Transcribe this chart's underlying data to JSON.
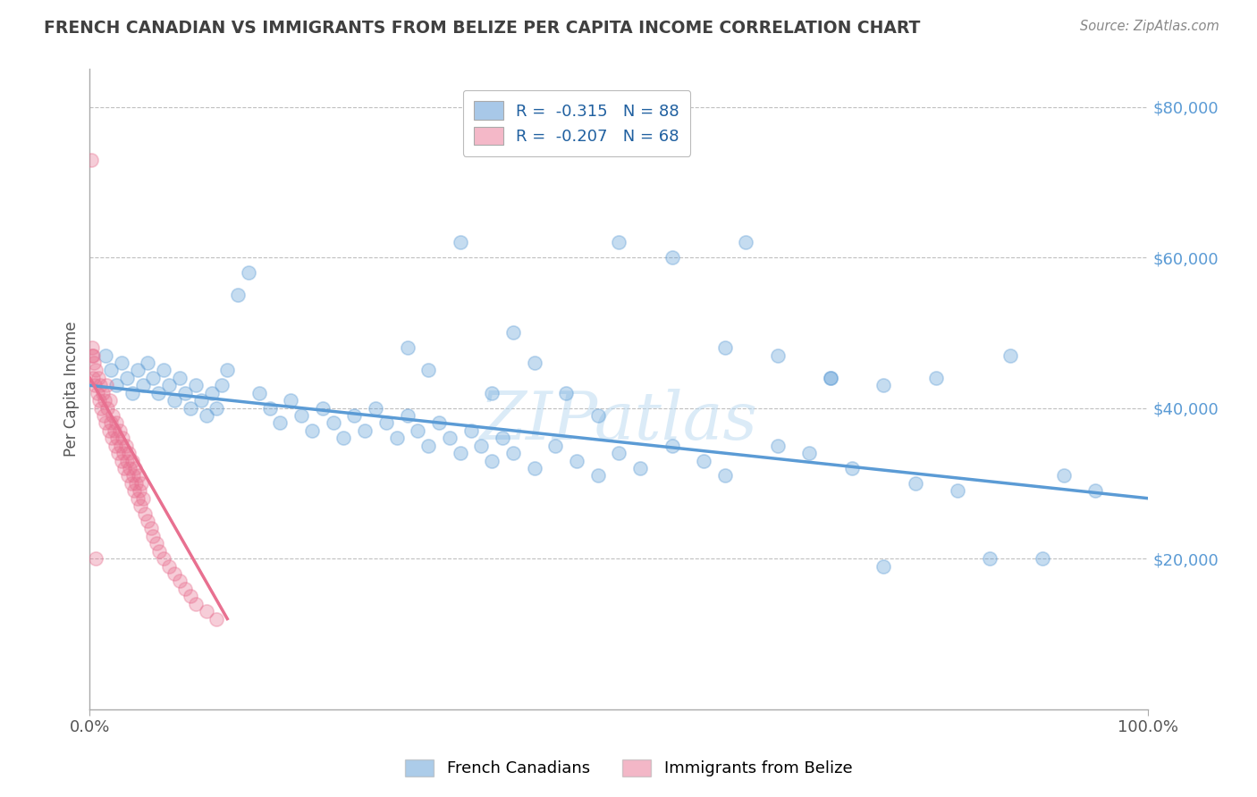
{
  "title": "FRENCH CANADIAN VS IMMIGRANTS FROM BELIZE PER CAPITA INCOME CORRELATION CHART",
  "source_text": "Source: ZipAtlas.com",
  "ylabel": "Per Capita Income",
  "xlim": [
    0,
    100
  ],
  "ylim": [
    0,
    85000
  ],
  "yticks": [
    0,
    20000,
    40000,
    60000,
    80000
  ],
  "ytick_labels": [
    "",
    "$20,000",
    "$40,000",
    "$60,000",
    "$80,000"
  ],
  "xtick_labels": [
    "0.0%",
    "100.0%"
  ],
  "legend_items": [
    {
      "label": "R =  -0.315   N = 88",
      "color": "#a8c8e8"
    },
    {
      "label": "R =  -0.207   N = 68",
      "color": "#f4b8c8"
    }
  ],
  "blue_color": "#5b9bd5",
  "pink_color": "#e87090",
  "watermark": "ZIPatlas",
  "background_color": "#ffffff",
  "grid_color": "#c0c0c0",
  "title_color": "#404040",
  "yaxis_label_color": "#5b9bd5",
  "blue_scatter_x": [
    1.5,
    2.0,
    2.5,
    3.0,
    3.5,
    4.0,
    4.5,
    5.0,
    5.5,
    6.0,
    6.5,
    7.0,
    7.5,
    8.0,
    8.5,
    9.0,
    9.5,
    10.0,
    10.5,
    11.0,
    11.5,
    12.0,
    12.5,
    13.0,
    14.0,
    15.0,
    16.0,
    17.0,
    18.0,
    19.0,
    20.0,
    21.0,
    22.0,
    23.0,
    24.0,
    25.0,
    26.0,
    27.0,
    28.0,
    29.0,
    30.0,
    31.0,
    32.0,
    33.0,
    34.0,
    35.0,
    36.0,
    37.0,
    38.0,
    39.0,
    40.0,
    42.0,
    44.0,
    46.0,
    48.0,
    50.0,
    52.0,
    55.0,
    58.0,
    60.0,
    62.0,
    65.0,
    68.0,
    70.0,
    72.0,
    75.0,
    78.0,
    80.0,
    85.0,
    90.0,
    95.0,
    30.0,
    32.0,
    35.0,
    38.0,
    40.0,
    42.0,
    45.0,
    48.0,
    50.0,
    55.0,
    60.0,
    65.0,
    70.0,
    75.0,
    82.0,
    87.0,
    92.0
  ],
  "blue_scatter_y": [
    47000,
    45000,
    43000,
    46000,
    44000,
    42000,
    45000,
    43000,
    46000,
    44000,
    42000,
    45000,
    43000,
    41000,
    44000,
    42000,
    40000,
    43000,
    41000,
    39000,
    42000,
    40000,
    43000,
    45000,
    55000,
    58000,
    42000,
    40000,
    38000,
    41000,
    39000,
    37000,
    40000,
    38000,
    36000,
    39000,
    37000,
    40000,
    38000,
    36000,
    39000,
    37000,
    35000,
    38000,
    36000,
    34000,
    37000,
    35000,
    33000,
    36000,
    34000,
    32000,
    35000,
    33000,
    31000,
    34000,
    32000,
    35000,
    33000,
    31000,
    62000,
    47000,
    34000,
    44000,
    32000,
    43000,
    30000,
    44000,
    20000,
    20000,
    29000,
    48000,
    45000,
    62000,
    42000,
    50000,
    46000,
    42000,
    39000,
    62000,
    60000,
    48000,
    35000,
    44000,
    19000,
    29000,
    47000,
    31000
  ],
  "pink_scatter_x": [
    0.2,
    0.3,
    0.4,
    0.5,
    0.6,
    0.7,
    0.8,
    0.9,
    1.0,
    1.1,
    1.2,
    1.3,
    1.4,
    1.5,
    1.6,
    1.7,
    1.8,
    1.9,
    2.0,
    2.1,
    2.2,
    2.3,
    2.4,
    2.5,
    2.6,
    2.7,
    2.8,
    2.9,
    3.0,
    3.1,
    3.2,
    3.3,
    3.4,
    3.5,
    3.6,
    3.7,
    3.8,
    3.9,
    4.0,
    4.1,
    4.2,
    4.3,
    4.4,
    4.5,
    4.6,
    4.7,
    4.8,
    4.9,
    5.0,
    5.2,
    5.5,
    5.8,
    6.0,
    6.3,
    6.6,
    7.0,
    7.5,
    8.0,
    8.5,
    9.0,
    9.5,
    10.0,
    11.0,
    12.0,
    0.15,
    0.25,
    0.35,
    0.55
  ],
  "pink_scatter_y": [
    47000,
    44000,
    46000,
    43000,
    45000,
    42000,
    44000,
    41000,
    43000,
    40000,
    42000,
    39000,
    41000,
    38000,
    43000,
    40000,
    37000,
    41000,
    38000,
    36000,
    39000,
    37000,
    35000,
    38000,
    36000,
    34000,
    37000,
    35000,
    33000,
    36000,
    34000,
    32000,
    35000,
    33000,
    31000,
    34000,
    32000,
    30000,
    33000,
    31000,
    29000,
    32000,
    30000,
    28000,
    31000,
    29000,
    27000,
    30000,
    28000,
    26000,
    25000,
    24000,
    23000,
    22000,
    21000,
    20000,
    19000,
    18000,
    17000,
    16000,
    15000,
    14000,
    13000,
    12000,
    73000,
    48000,
    47000,
    20000
  ],
  "blue_trendline_x": [
    0,
    100
  ],
  "blue_trendline_y": [
    43000,
    28000
  ],
  "pink_trendline_x": [
    0,
    13
  ],
  "pink_trendline_y": [
    44000,
    12000
  ]
}
